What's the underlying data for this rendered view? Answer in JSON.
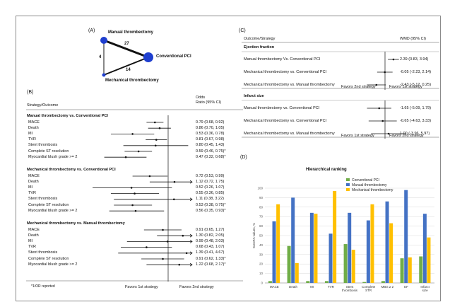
{
  "panelA": {
    "label": "(A)",
    "nodes": {
      "manual": "Manual thrombectomy",
      "conventional": "Conventional PCI",
      "mechanical": "Mechanical thrombectomy"
    },
    "edges": {
      "manual_conventional": "27",
      "manual_mechanical": "4",
      "mechanical_conventional": "14"
    }
  },
  "panelB": {
    "label": "(B)",
    "col_strategy": "Strategy/Outcome",
    "col_or_line1": "Odds",
    "col_or_line2": "Ratio (95% CI)",
    "footnote": "*1/OR reported",
    "favors_left": "Favors 1st strategy",
    "favors_right": "Favors 2nd strategy",
    "groups": [
      {
        "title": "Manual thrombectomy vs. Conventional PCI",
        "rows": [
          {
            "label": "MACE",
            "ci": "0.79 (0.68, 0.92)",
            "est": 0.79,
            "lo": 0.68,
            "hi": 0.92,
            "arrow": false
          },
          {
            "label": "Death",
            "ci": "0.86 (0.70, 1.05)",
            "est": 0.86,
            "lo": 0.7,
            "hi": 1.05,
            "arrow": false
          },
          {
            "label": "MI",
            "ci": "0.53 (0.36, 0.78)",
            "est": 0.53,
            "lo": 0.36,
            "hi": 0.78,
            "arrow": false
          },
          {
            "label": "TVR",
            "ci": "0.81 (0.67, 0.98)",
            "est": 0.81,
            "lo": 0.67,
            "hi": 0.98,
            "arrow": false
          },
          {
            "label": "Stent thrombosis",
            "ci": "0.80 (0.45, 1.43)",
            "est": 0.8,
            "lo": 0.45,
            "hi": 1.43,
            "arrow": false
          },
          {
            "label": "Complete ST resolution",
            "ci": "0.59 (0.46, 0.75)*",
            "est": 0.59,
            "lo": 0.46,
            "hi": 0.75,
            "arrow": false
          },
          {
            "label": "Myocardial blush grade >= 2",
            "ci": "0.47 (0.32, 0.68)*",
            "est": 0.47,
            "lo": 0.32,
            "hi": 0.68,
            "arrow": false
          }
        ]
      },
      {
        "title": "Mechanical thrombectomy vs. Conventional PCI",
        "rows": [
          {
            "label": "MACE",
            "ci": "0.72 (0.53, 0.99)",
            "est": 0.72,
            "lo": 0.53,
            "hi": 0.99,
            "arrow": false
          },
          {
            "label": "Death",
            "ci": "1.12 (0.72, 1.75)",
            "est": 1.12,
            "lo": 0.72,
            "hi": 1.75,
            "arrow": true
          },
          {
            "label": "MI",
            "ci": "0.52 (0.26, 1.07)",
            "est": 0.52,
            "lo": 0.26,
            "hi": 1.07,
            "arrow": false
          },
          {
            "label": "TVR",
            "ci": "0.55 (0.36, 0.85)",
            "est": 0.55,
            "lo": 0.36,
            "hi": 0.85,
            "arrow": false
          },
          {
            "label": "Stent thrombosis",
            "ci": "1.11 (0.38, 3.22)",
            "est": 1.11,
            "lo": 0.38,
            "hi": 3.22,
            "arrow": true
          },
          {
            "label": "Complete ST resolution",
            "ci": "0.53 (0.38, 0.75)*",
            "est": 0.53,
            "lo": 0.38,
            "hi": 0.75,
            "arrow": false
          },
          {
            "label": "Myocardial blush grade >= 2",
            "ci": "0.56 (0.35, 0.93)*",
            "est": 0.56,
            "lo": 0.35,
            "hi": 0.93,
            "arrow": false
          }
        ]
      },
      {
        "title": "Mechanical thrombectomy vs. Manual thrombectomy",
        "rows": [
          {
            "label": "MACE",
            "ci": "0.91 (0.65, 1.27)",
            "est": 0.91,
            "lo": 0.65,
            "hi": 1.27,
            "arrow": false
          },
          {
            "label": "Death",
            "ci": "1.30 (0.82, 2.05)",
            "est": 1.3,
            "lo": 0.82,
            "hi": 2.05,
            "arrow": true
          },
          {
            "label": "MI",
            "ci": "0.99 (0.48, 2.03)",
            "est": 0.99,
            "lo": 0.48,
            "hi": 2.03,
            "arrow": true
          },
          {
            "label": "TVR",
            "ci": "0.68 (0.43, 1.07)",
            "est": 0.68,
            "lo": 0.43,
            "hi": 1.07,
            "arrow": false
          },
          {
            "label": "Stent thrombosis",
            "ci": "1.39 (0.41, 4.67)",
            "est": 1.39,
            "lo": 0.41,
            "hi": 4.67,
            "arrow": true
          },
          {
            "label": "Complete ST resolution",
            "ci": "0.91 (0.62, 1.33)*",
            "est": 0.91,
            "lo": 0.62,
            "hi": 1.33,
            "arrow": false
          },
          {
            "label": "Myocardial blush grade >= 2",
            "ci": "1.22 (0.68, 2.17)*",
            "est": 1.22,
            "lo": 0.68,
            "hi": 2.17,
            "arrow": true
          }
        ]
      }
    ]
  },
  "panelC": {
    "label": "(C)",
    "col_outcome": "Outcome/Strategy",
    "col_wmd": "WMD (95% CI)",
    "sections": [
      {
        "title": "Ejection fraction",
        "favors_left": "Favors 2nd strategy",
        "favors_right": "Favors 1st strategy",
        "rows": [
          {
            "label": "Manual thrombectomy Vs. Conventional PCI",
            "ci": "2.39 (0.83, 3.94)",
            "est": 2.39,
            "lo": 0.83,
            "hi": 3.94
          },
          {
            "label": "Mechanical thrombectomy vs. Conventional PCI",
            "ci": "-0.05 (-2.23, 2.14)",
            "est": -0.05,
            "lo": -2.23,
            "hi": 2.14
          },
          {
            "label": "Mechanical thrombectomy vs. Manual thrombectomy",
            "ci": "-2.43 (-5.12, 0.25)",
            "est": -2.43,
            "lo": -5.12,
            "hi": 0.25
          }
        ]
      },
      {
        "title": "Infarct size",
        "favors_left": "Favors 1st strategy",
        "favors_right": "Favors 2nd strategy",
        "rows": [
          {
            "label": "Manual thrombectomy vs. Conventional PCI",
            "ci": "-1.65 (-5.09, 1.79)",
            "est": -1.65,
            "lo": -5.09,
            "hi": 1.79
          },
          {
            "label": "Mechanical thrombectomy vs. Conventional PCI",
            "ci": "-0.65 (-4.63, 3.33)",
            "est": -0.65,
            "lo": -4.63,
            "hi": 3.33
          },
          {
            "label": "Mechanical thrombectomy vs. Manual thrombectomy",
            "ci": "1.00 (-3.96, 5.97)",
            "est": 1.0,
            "lo": -3.96,
            "hi": 5.97
          }
        ]
      }
    ]
  },
  "panelD": {
    "label": "(D)"
  },
  "chart_data": {
    "type": "bar",
    "title": "Hierarchical ranking",
    "ylabel": "SUCRA values, %",
    "ylim": [
      0,
      100
    ],
    "categories": [
      "MACE",
      "Death",
      "MI",
      "TVR",
      "Stent thrombosis",
      "Complete STR",
      "MBG ≥ 2",
      "EF",
      "Infarct size"
    ],
    "series": [
      {
        "name": "Conventional PCI",
        "color": "#70ad47",
        "values": [
          2,
          39,
          2,
          2,
          41,
          1,
          2,
          26,
          28
        ]
      },
      {
        "name": "Manual thrombectomy",
        "color": "#4472c4",
        "values": [
          65,
          90,
          74,
          52,
          74,
          66,
          86,
          98,
          73
        ]
      },
      {
        "name": "Mechanical thrombectomy",
        "color": "#ffc000",
        "values": [
          83,
          21,
          73,
          97,
          35,
          83,
          63,
          27,
          48
        ]
      }
    ],
    "yticks": [
      "0",
      "10",
      "20",
      "30",
      "40",
      "50",
      "60",
      "70",
      "80",
      "90",
      "100"
    ],
    "legend": "top-right",
    "grid": true
  }
}
